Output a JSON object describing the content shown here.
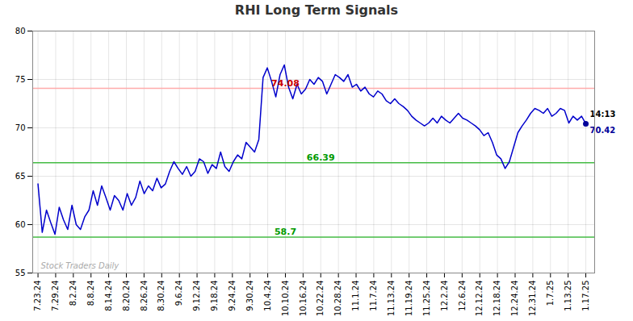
{
  "chart_data": {
    "type": "line",
    "title": "RHI Long Term Signals",
    "color": "#0000cc",
    "grid": true,
    "xlim": [
      -0.3,
      31.5
    ],
    "xticks": [
      {
        "value": 0,
        "label": "7.23.24"
      },
      {
        "value": 1,
        "label": "7.29.24"
      },
      {
        "value": 2,
        "label": "8.2.24"
      },
      {
        "value": 3,
        "label": "8.8.24"
      },
      {
        "value": 4,
        "label": "8.14.24"
      },
      {
        "value": 5,
        "label": "8.20.24"
      },
      {
        "value": 6,
        "label": "8.26.24"
      },
      {
        "value": 7,
        "label": "8.30.24"
      },
      {
        "value": 8,
        "label": "9.6.24"
      },
      {
        "value": 9,
        "label": "9.12.24"
      },
      {
        "value": 10,
        "label": "9.18.24"
      },
      {
        "value": 11,
        "label": "9.24.24"
      },
      {
        "value": 12,
        "label": "9.30.24"
      },
      {
        "value": 13,
        "label": "10.4.24"
      },
      {
        "value": 14,
        "label": "10.10.24"
      },
      {
        "value": 15,
        "label": "10.16.24"
      },
      {
        "value": 16,
        "label": "10.22.24"
      },
      {
        "value": 17,
        "label": "10.28.24"
      },
      {
        "value": 18,
        "label": "11.1.24"
      },
      {
        "value": 19,
        "label": "11.7.24"
      },
      {
        "value": 20,
        "label": "11.13.24"
      },
      {
        "value": 21,
        "label": "11.19.24"
      },
      {
        "value": 22,
        "label": "11.25.24"
      },
      {
        "value": 23,
        "label": "12.2.24"
      },
      {
        "value": 24,
        "label": "12.6.24"
      },
      {
        "value": 25,
        "label": "12.12.24"
      },
      {
        "value": 26,
        "label": "12.18.24"
      },
      {
        "value": 27,
        "label": "12.24.24"
      },
      {
        "value": 28,
        "label": "12.31.24"
      },
      {
        "value": 29,
        "label": "1.7.25"
      },
      {
        "value": 30,
        "label": "1.13.25"
      },
      {
        "value": 31,
        "label": "1.17.25"
      }
    ],
    "ylim": [
      55,
      80
    ],
    "yticks": [
      55,
      60,
      65,
      70,
      75,
      80
    ],
    "x": [
      0,
      0.2403,
      0.4806,
      0.7209,
      0.9612,
      1.2016,
      1.4419,
      1.6822,
      1.9225,
      2.1628,
      2.4031,
      2.6434,
      2.8837,
      3.124,
      3.3643,
      3.6047,
      3.845,
      4.0853,
      4.3256,
      4.5659,
      4.8062,
      5.0465,
      5.2868,
      5.5271,
      5.7674,
      6.0078,
      6.2481,
      6.4884,
      6.7287,
      6.969,
      7.2093,
      7.4496,
      7.6899,
      7.9302,
      8.1705,
      8.4109,
      8.6512,
      8.8915,
      9.1318,
      9.3721,
      9.6124,
      9.8527,
      10.093,
      10.3333,
      10.5736,
      10.814,
      11.0543,
      11.2946,
      11.5349,
      11.7752,
      12.0155,
      12.2558,
      12.4961,
      12.7364,
      12.9767,
      13.2171,
      13.4574,
      13.6977,
      13.938,
      14.1783,
      14.4186,
      14.6589,
      14.8992,
      15.1395,
      15.3798,
      15.6202,
      15.8605,
      16.1008,
      16.3411,
      16.5814,
      16.8217,
      17.062,
      17.3023,
      17.5426,
      17.7829,
      18.0233,
      18.2636,
      18.5039,
      18.7442,
      18.9845,
      19.2248,
      19.4651,
      19.7054,
      19.9457,
      20.186,
      20.4264,
      20.6667,
      20.907,
      21.1473,
      21.3876,
      21.6279,
      21.8682,
      22.1085,
      22.3488,
      22.5891,
      22.8295,
      23.0698,
      23.3101,
      23.5504,
      23.7907,
      24.031,
      24.2713,
      24.5116,
      24.7519,
      24.9922,
      25.2326,
      25.4729,
      25.7132,
      25.9535,
      26.1938,
      26.4341,
      26.6744,
      26.9147,
      27.155,
      27.3953,
      27.6357,
      27.876,
      28.1163,
      28.3566,
      28.5969,
      28.8372,
      29.0775,
      29.3178,
      29.5581,
      29.7984,
      30.0388,
      30.2791,
      30.5194,
      30.7597,
      31
    ],
    "values": [
      64.2,
      59.2,
      61.5,
      60.2,
      59.0,
      61.8,
      60.5,
      59.5,
      62.0,
      60.0,
      59.5,
      60.8,
      61.5,
      63.5,
      62.0,
      64.0,
      62.8,
      61.5,
      63.0,
      62.5,
      61.5,
      63.2,
      62.0,
      62.8,
      64.5,
      63.2,
      64.0,
      63.5,
      64.8,
      63.8,
      64.2,
      65.5,
      66.5,
      65.8,
      65.2,
      66.0,
      65.0,
      65.5,
      66.8,
      66.5,
      65.3,
      66.2,
      65.8,
      67.5,
      66.0,
      65.5,
      66.5,
      67.2,
      66.8,
      68.5,
      68.0,
      67.5,
      68.8,
      75.2,
      76.2,
      74.8,
      73.2,
      75.5,
      76.5,
      74.2,
      73.0,
      74.5,
      73.5,
      74.0,
      75.0,
      74.5,
      75.2,
      74.8,
      73.5,
      74.5,
      75.5,
      75.2,
      74.8,
      75.5,
      74.2,
      74.5,
      73.8,
      74.2,
      73.5,
      73.2,
      73.8,
      73.5,
      72.8,
      72.5,
      73.0,
      72.5,
      72.2,
      71.8,
      71.2,
      70.8,
      70.5,
      70.2,
      70.5,
      71.0,
      70.5,
      71.2,
      70.8,
      70.5,
      71.0,
      71.5,
      71.0,
      70.8,
      70.5,
      70.2,
      69.8,
      69.2,
      69.5,
      68.5,
      67.2,
      66.8,
      65.8,
      66.5,
      68.0,
      69.5,
      70.2,
      70.8,
      71.5,
      72.0,
      71.8,
      71.5,
      72.0,
      71.2,
      71.5,
      72.0,
      71.8,
      70.5,
      71.2,
      70.8,
      71.2,
      70.42
    ],
    "hlines": [
      {
        "value": 74.08,
        "color": "#ffaaaa",
        "label": "74.08",
        "label_color": "#cc0000"
      },
      {
        "value": 66.39,
        "color": "#44bb44",
        "label": "66.39",
        "label_color": "#009900"
      },
      {
        "value": 58.7,
        "color": "#44bb44",
        "label": "58.7",
        "label_color": "#009900"
      }
    ],
    "watermark": "Stock Traders Daily",
    "endpoint": {
      "label_top": "14:13",
      "label": "70.42",
      "color": "#000099"
    }
  }
}
